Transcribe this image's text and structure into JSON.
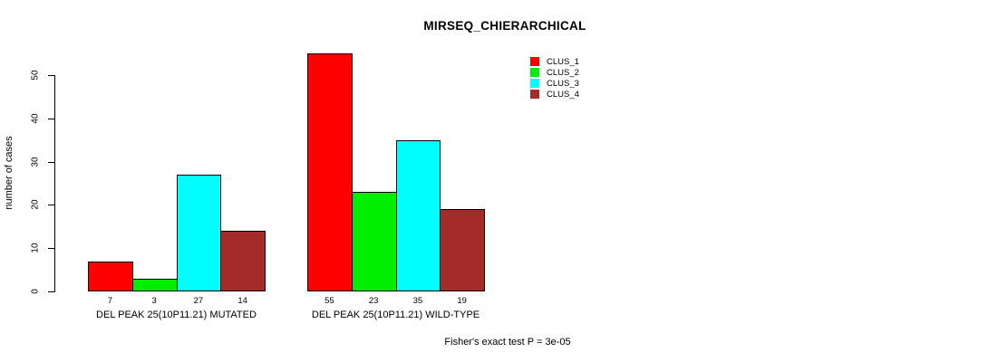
{
  "chart_data": {
    "type": "bar",
    "title": "MIRSEQ_CHIERARCHICAL",
    "xlabel": "",
    "ylabel": "number of cases",
    "yticks": [
      0,
      10,
      20,
      30,
      40,
      50
    ],
    "ylim": [
      0,
      55
    ],
    "grid": false,
    "legend_position": "top-right",
    "series": [
      {
        "name": "CLUS_1",
        "color": "#FF0000"
      },
      {
        "name": "CLUS_2",
        "color": "#00EE00"
      },
      {
        "name": "CLUS_3",
        "color": "#00FFFF"
      },
      {
        "name": "CLUS_4",
        "color": "#A52A2A"
      }
    ],
    "groups": [
      {
        "label": "DEL PEAK 25(10P11.21) MUTATED",
        "values": [
          7,
          3,
          27,
          14
        ]
      },
      {
        "label": "DEL PEAK 25(10P11.21) WILD-TYPE",
        "values": [
          55,
          23,
          35,
          19
        ]
      }
    ],
    "footnote": "Fisher's exact test P = 3e-05"
  }
}
